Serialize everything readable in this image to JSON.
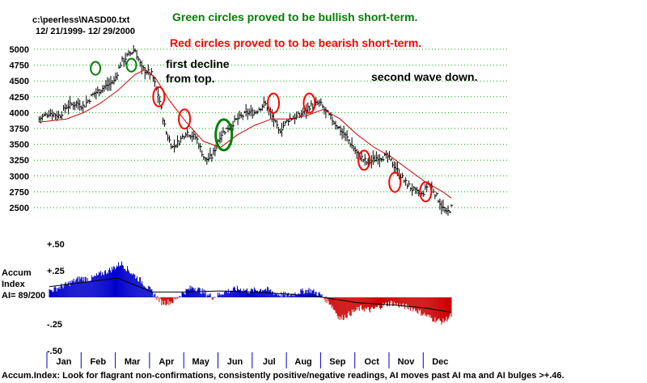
{
  "header": {
    "file": "c:\\peerless\\NASD00.txt",
    "range": "12/ 21/1999- 12/ 29/2000",
    "note_green": "Green circles proved to be bullish short-term.",
    "note_red": "Red circles proved to to be bearish short-term."
  },
  "annotations": {
    "first_decline_1": "first decline",
    "first_decline_2": "from top.",
    "second_wave": "second wave down."
  },
  "indicator": {
    "label_1": "Accum",
    "label_2": "Index",
    "label_3": "AI= 89/200",
    "footer": "Accum.Index: Look for flagrant non-confirmations, consistently positive/negative readings, AI moves past AI ma and AI bulges >+.46."
  },
  "colors": {
    "price_bar": "#000000",
    "moving_average": "#cc0000",
    "green_note": "#008000",
    "red_note": "#ff0000",
    "ai_positive": "#0000cc",
    "ai_negative": "#cc0000",
    "month_tick": "#0000cc",
    "grid": "#00aa00"
  },
  "chart_data": [
    {
      "type": "bar",
      "subtype": "ohlc-price-bars",
      "x_type": "month-of-2000",
      "ylim": [
        2350,
        5100
      ],
      "yticks": [
        "5000",
        "4750",
        "4500",
        "4250",
        "4000",
        "3750",
        "3500",
        "3250",
        "3000",
        "2750",
        "2500"
      ],
      "months": [
        "Jan",
        "Feb",
        "Mar",
        "Apr",
        "May",
        "Jun",
        "Jul",
        "Aug",
        "Sep",
        "Oct",
        "Nov",
        "Dec"
      ],
      "grid": true,
      "price_path": [
        [
          -0.3,
          3900
        ],
        [
          0.0,
          4000
        ],
        [
          0.3,
          3950
        ],
        [
          0.5,
          4100
        ],
        [
          0.8,
          4150
        ],
        [
          1.0,
          4100
        ],
        [
          1.3,
          4300
        ],
        [
          1.6,
          4400
        ],
        [
          1.9,
          4500
        ],
        [
          2.1,
          4800
        ],
        [
          2.3,
          4900
        ],
        [
          2.5,
          5000
        ],
        [
          2.7,
          4700
        ],
        [
          3.0,
          4600
        ],
        [
          3.2,
          4250
        ],
        [
          3.4,
          3700
        ],
        [
          3.6,
          3450
        ],
        [
          3.8,
          3550
        ],
        [
          4.0,
          3700
        ],
        [
          4.3,
          3600
        ],
        [
          4.55,
          3250
        ],
        [
          4.75,
          3300
        ],
        [
          5.0,
          3650
        ],
        [
          5.2,
          3750
        ],
        [
          5.5,
          3900
        ],
        [
          5.8,
          4000
        ],
        [
          6.0,
          4000
        ],
        [
          6.3,
          4150
        ],
        [
          6.55,
          3900
        ],
        [
          6.7,
          3700
        ],
        [
          7.0,
          3900
        ],
        [
          7.3,
          3950
        ],
        [
          7.6,
          4100
        ],
        [
          7.9,
          4150
        ],
        [
          8.1,
          4000
        ],
        [
          8.4,
          3800
        ],
        [
          8.7,
          3600
        ],
        [
          9.0,
          3350
        ],
        [
          9.3,
          3200
        ],
        [
          9.6,
          3300
        ],
        [
          9.9,
          3300
        ],
        [
          10.1,
          3150
        ],
        [
          10.4,
          2900
        ],
        [
          10.7,
          2750
        ],
        [
          10.9,
          2700
        ],
        [
          11.1,
          2900
        ],
        [
          11.4,
          2600
        ],
        [
          11.6,
          2400
        ],
        [
          11.75,
          2500
        ]
      ],
      "moving_average": [
        [
          -0.3,
          3850
        ],
        [
          0.5,
          3900
        ],
        [
          1.0,
          4000
        ],
        [
          1.5,
          4150
        ],
        [
          2.0,
          4350
        ],
        [
          2.5,
          4600
        ],
        [
          2.8,
          4680
        ],
        [
          3.1,
          4550
        ],
        [
          3.5,
          4200
        ],
        [
          4.0,
          3850
        ],
        [
          4.5,
          3550
        ],
        [
          5.0,
          3450
        ],
        [
          5.5,
          3650
        ],
        [
          6.0,
          3800
        ],
        [
          6.5,
          3900
        ],
        [
          7.0,
          3900
        ],
        [
          7.5,
          3950
        ],
        [
          8.0,
          4050
        ],
        [
          8.5,
          3900
        ],
        [
          9.0,
          3650
        ],
        [
          9.5,
          3450
        ],
        [
          10.0,
          3300
        ],
        [
          10.5,
          3100
        ],
        [
          11.0,
          2900
        ],
        [
          11.5,
          2750
        ],
        [
          11.75,
          2650
        ]
      ],
      "green_circles": [
        [
          1.35,
          4700
        ],
        [
          2.4,
          4750
        ],
        [
          5.1,
          3650
        ]
      ],
      "red_circles": [
        [
          3.2,
          4250
        ],
        [
          3.95,
          3900
        ],
        [
          6.55,
          4150
        ],
        [
          7.6,
          4150
        ],
        [
          9.2,
          3250
        ],
        [
          10.1,
          2900
        ],
        [
          11.0,
          2750
        ]
      ]
    },
    {
      "type": "bar",
      "subtype": "accumulation-index",
      "ylim": [
        -0.5,
        0.5
      ],
      "yticks": [
        "+.50",
        "+.25",
        "",
        "-.25",
        "-.50"
      ],
      "ai_path": [
        [
          0.0,
          0.06
        ],
        [
          0.5,
          0.12
        ],
        [
          0.9,
          0.18
        ],
        [
          1.2,
          0.17
        ],
        [
          1.5,
          0.22
        ],
        [
          1.8,
          0.26
        ],
        [
          2.1,
          0.32
        ],
        [
          2.4,
          0.23
        ],
        [
          2.7,
          0.15
        ],
        [
          3.0,
          0.05
        ],
        [
          3.3,
          -0.05
        ],
        [
          3.6,
          -0.04
        ],
        [
          3.9,
          0.04
        ],
        [
          4.2,
          0.1
        ],
        [
          4.5,
          0.05
        ],
        [
          4.8,
          0.0
        ],
        [
          5.1,
          0.05
        ],
        [
          5.5,
          0.08
        ],
        [
          5.9,
          0.06
        ],
        [
          6.3,
          0.08
        ],
        [
          6.7,
          0.03
        ],
        [
          7.0,
          0.02
        ],
        [
          7.3,
          0.05
        ],
        [
          7.6,
          0.07
        ],
        [
          7.9,
          0.03
        ],
        [
          8.2,
          -0.05
        ],
        [
          8.5,
          -0.2
        ],
        [
          8.8,
          -0.15
        ],
        [
          9.1,
          -0.1
        ],
        [
          9.4,
          -0.12
        ],
        [
          9.7,
          -0.08
        ],
        [
          10.0,
          -0.05
        ],
        [
          10.3,
          -0.08
        ],
        [
          10.6,
          -0.1
        ],
        [
          10.9,
          -0.15
        ],
        [
          11.2,
          -0.2
        ],
        [
          11.5,
          -0.23
        ],
        [
          11.75,
          -0.17
        ]
      ],
      "ai_ma": [
        [
          0.0,
          0.1
        ],
        [
          1.0,
          0.14
        ],
        [
          2.0,
          0.18
        ],
        [
          3.0,
          0.05
        ],
        [
          4.0,
          0.05
        ],
        [
          5.0,
          0.06
        ],
        [
          6.0,
          0.05
        ],
        [
          7.0,
          0.03
        ],
        [
          8.0,
          0.0
        ],
        [
          9.0,
          -0.05
        ],
        [
          10.0,
          -0.07
        ],
        [
          11.0,
          -0.1
        ],
        [
          11.75,
          -0.14
        ]
      ]
    }
  ]
}
